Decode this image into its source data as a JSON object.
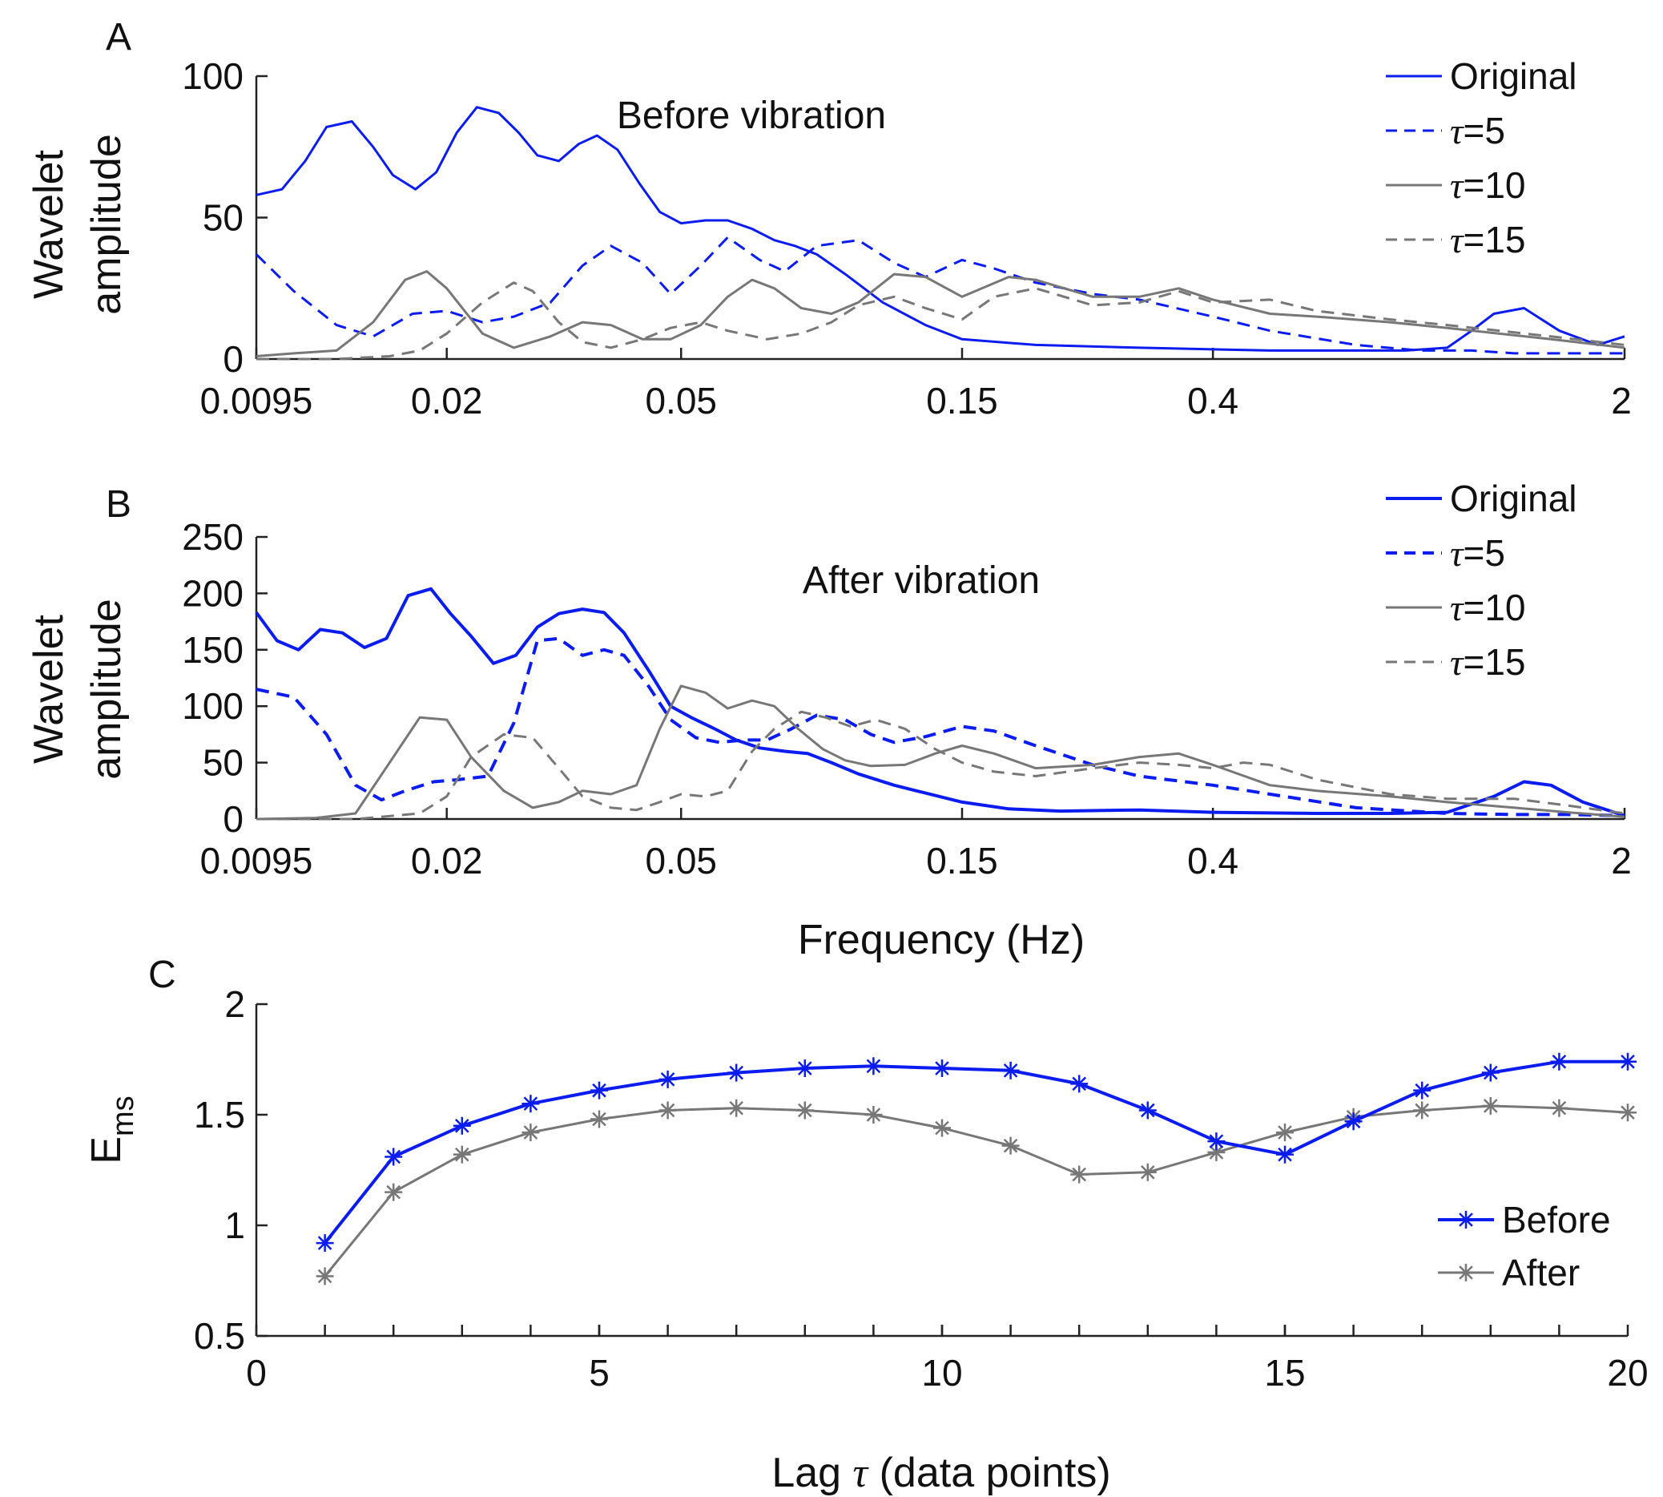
{
  "colors": {
    "blue": "#0a1cf0",
    "gray": "#777777",
    "axis": "#222222"
  },
  "chart_data": [
    {
      "panel": "A",
      "type": "line",
      "title": "",
      "annotation": "Before vibration",
      "xlabel": "",
      "ylabel": [
        "Wavelet",
        "amplitude"
      ],
      "xscale": "log",
      "xlim": [
        0.0095,
        2
      ],
      "ylim": [
        0,
        100
      ],
      "xticks": [
        0.0095,
        0.02,
        0.05,
        0.15,
        0.4,
        2
      ],
      "xtick_labels": [
        "0.0095",
        "0.02",
        "0.05",
        "0.15",
        "0.4",
        "2"
      ],
      "yticks": [
        0,
        50,
        100
      ],
      "ytick_labels": [
        "0",
        "50",
        "100"
      ],
      "legend_position": "top-right",
      "series": [
        {
          "name": "Original",
          "sym": "",
          "num": "",
          "color": "blue",
          "dash": "solid",
          "width": 3,
          "x": [
            0.0095,
            0.0105,
            0.0115,
            0.0125,
            0.0138,
            0.015,
            0.0162,
            0.0177,
            0.0192,
            0.0208,
            0.0225,
            0.0245,
            0.0265,
            0.0285,
            0.031,
            0.0335,
            0.036,
            0.039,
            0.0425,
            0.046,
            0.05,
            0.055,
            0.06,
            0.066,
            0.072,
            0.078,
            0.085,
            0.095,
            0.11,
            0.13,
            0.15,
            0.2,
            0.3,
            0.5,
            0.7,
            0.85,
            1.0,
            1.1,
            1.2,
            1.35,
            1.55,
            1.8,
            2.0
          ],
          "y": [
            58,
            60,
            70,
            82,
            84,
            75,
            65,
            60,
            66,
            80,
            89,
            87,
            80,
            72,
            70,
            76,
            79,
            74,
            62,
            52,
            48,
            49,
            49,
            46,
            42,
            40,
            37,
            30,
            20,
            12,
            7,
            5,
            4,
            3,
            3,
            3,
            4,
            10,
            16,
            18,
            10,
            5,
            8
          ]
        },
        {
          "name": "τ=5",
          "sym": "τ",
          "num": "=5",
          "color": "blue",
          "dash": "16 10",
          "width": 3,
          "x": [
            0.0095,
            0.011,
            0.013,
            0.015,
            0.0175,
            0.02,
            0.023,
            0.026,
            0.03,
            0.034,
            0.038,
            0.043,
            0.048,
            0.054,
            0.06,
            0.068,
            0.075,
            0.085,
            0.1,
            0.115,
            0.13,
            0.15,
            0.17,
            0.2,
            0.25,
            0.3,
            0.4,
            0.5,
            0.7,
            0.9,
            1.1,
            1.3,
            1.6,
            2.0
          ],
          "y": [
            37,
            24,
            12,
            8,
            16,
            17,
            13,
            15,
            20,
            33,
            40,
            34,
            23,
            33,
            43,
            35,
            31,
            40,
            42,
            34,
            29,
            35,
            32,
            27,
            23,
            21,
            15,
            10,
            5,
            3,
            3,
            2,
            2,
            2
          ]
        },
        {
          "name": "τ=10",
          "sym": "τ",
          "num": "=10",
          "color": "gray",
          "dash": "solid",
          "width": 3,
          "x": [
            0.0095,
            0.011,
            0.013,
            0.015,
            0.017,
            0.0185,
            0.02,
            0.023,
            0.026,
            0.03,
            0.034,
            0.038,
            0.043,
            0.048,
            0.054,
            0.06,
            0.066,
            0.072,
            0.08,
            0.09,
            0.1,
            0.115,
            0.13,
            0.15,
            0.18,
            0.2,
            0.25,
            0.3,
            0.35,
            0.4,
            0.5,
            0.6,
            0.8,
            1.0,
            1.5,
            2.0
          ],
          "y": [
            1,
            2,
            3,
            13,
            28,
            31,
            25,
            9,
            4,
            8,
            13,
            12,
            7,
            7,
            12,
            22,
            28,
            25,
            18,
            16,
            20,
            30,
            29,
            22,
            29,
            28,
            22,
            22,
            25,
            21,
            16,
            15,
            13,
            11,
            7,
            4
          ]
        },
        {
          "name": "τ=15",
          "sym": "τ",
          "num": "=15",
          "color": "gray",
          "dash": "16 10",
          "width": 3,
          "x": [
            0.0095,
            0.013,
            0.016,
            0.018,
            0.02,
            0.023,
            0.026,
            0.028,
            0.031,
            0.034,
            0.038,
            0.043,
            0.048,
            0.054,
            0.06,
            0.07,
            0.08,
            0.09,
            0.1,
            0.115,
            0.13,
            0.15,
            0.17,
            0.2,
            0.25,
            0.3,
            0.35,
            0.4,
            0.5,
            0.6,
            0.8,
            1.0,
            1.5,
            2.0
          ],
          "y": [
            0,
            0,
            1,
            3,
            9,
            20,
            27,
            24,
            13,
            6,
            4,
            7,
            11,
            13,
            10,
            7,
            9,
            13,
            19,
            22,
            18,
            14,
            22,
            25,
            19,
            20,
            24,
            20,
            21,
            17,
            14,
            12,
            8,
            5
          ]
        }
      ]
    },
    {
      "panel": "B",
      "type": "line",
      "title": "",
      "annotation": "After vibration",
      "xlabel": "Frequency (Hz)",
      "ylabel": [
        "Wavelet",
        "amplitude"
      ],
      "xscale": "log",
      "xlim": [
        0.0095,
        2
      ],
      "ylim": [
        0,
        250
      ],
      "xticks": [
        0.0095,
        0.02,
        0.05,
        0.15,
        0.4,
        2
      ],
      "xtick_labels": [
        "0.0095",
        "0.02",
        "0.05",
        "0.15",
        "0.4",
        "2"
      ],
      "yticks": [
        0,
        50,
        100,
        150,
        200,
        250
      ],
      "ytick_labels": [
        "0",
        "50",
        "100",
        "150",
        "200",
        "250"
      ],
      "legend_position": "top-right",
      "series": [
        {
          "name": "Original",
          "sym": "",
          "num": "",
          "color": "blue",
          "dash": "solid",
          "width": 4,
          "x": [
            0.0095,
            0.0103,
            0.0112,
            0.0122,
            0.0133,
            0.0145,
            0.0158,
            0.0172,
            0.0188,
            0.0203,
            0.022,
            0.024,
            0.0262,
            0.0285,
            0.031,
            0.034,
            0.037,
            0.04,
            0.044,
            0.048,
            0.052,
            0.057,
            0.062,
            0.068,
            0.075,
            0.082,
            0.09,
            0.1,
            0.115,
            0.13,
            0.15,
            0.18,
            0.22,
            0.3,
            0.4,
            0.6,
            0.8,
            1.0,
            1.2,
            1.35,
            1.5,
            1.7,
            2.0
          ],
          "y": [
            183,
            158,
            150,
            168,
            165,
            152,
            160,
            198,
            204,
            182,
            162,
            138,
            145,
            170,
            182,
            186,
            183,
            165,
            132,
            100,
            90,
            80,
            70,
            63,
            60,
            58,
            50,
            40,
            30,
            23,
            15,
            9,
            7,
            8,
            6,
            5,
            5,
            6,
            20,
            33,
            30,
            15,
            3
          ]
        },
        {
          "name": "τ=5",
          "sym": "τ",
          "num": "=5",
          "color": "blue",
          "dash": "16 10",
          "width": 4,
          "x": [
            0.0095,
            0.011,
            0.0125,
            0.014,
            0.0155,
            0.017,
            0.019,
            0.021,
            0.0235,
            0.026,
            0.0285,
            0.031,
            0.034,
            0.037,
            0.04,
            0.044,
            0.048,
            0.053,
            0.058,
            0.064,
            0.07,
            0.077,
            0.085,
            0.095,
            0.105,
            0.115,
            0.13,
            0.15,
            0.17,
            0.2,
            0.25,
            0.3,
            0.4,
            0.5,
            0.7,
            1.0,
            1.3,
            1.6,
            2.0
          ],
          "y": [
            115,
            108,
            75,
            30,
            17,
            25,
            33,
            35,
            38,
            85,
            158,
            160,
            145,
            150,
            145,
            118,
            88,
            72,
            68,
            70,
            70,
            80,
            92,
            88,
            75,
            68,
            73,
            82,
            78,
            65,
            48,
            38,
            30,
            22,
            10,
            5,
            4,
            4,
            3
          ]
        },
        {
          "name": "τ=10",
          "sym": "τ",
          "num": "=10",
          "color": "gray",
          "dash": "solid",
          "width": 3,
          "x": [
            0.0095,
            0.012,
            0.014,
            0.016,
            0.018,
            0.02,
            0.022,
            0.025,
            0.028,
            0.031,
            0.034,
            0.038,
            0.042,
            0.046,
            0.05,
            0.055,
            0.06,
            0.066,
            0.072,
            0.079,
            0.087,
            0.095,
            0.105,
            0.12,
            0.135,
            0.15,
            0.17,
            0.2,
            0.25,
            0.3,
            0.35,
            0.4,
            0.5,
            0.6,
            0.8,
            1.0,
            1.3,
            1.6,
            2.0
          ],
          "y": [
            0,
            1,
            5,
            50,
            90,
            88,
            55,
            25,
            10,
            15,
            25,
            22,
            30,
            80,
            118,
            112,
            98,
            105,
            100,
            80,
            62,
            52,
            47,
            48,
            58,
            65,
            58,
            45,
            48,
            55,
            58,
            48,
            30,
            25,
            20,
            15,
            10,
            6,
            2
          ]
        },
        {
          "name": "τ=15",
          "sym": "τ",
          "num": "=15",
          "color": "gray",
          "dash": "16 10",
          "width": 3,
          "x": [
            0.0095,
            0.014,
            0.018,
            0.02,
            0.022,
            0.025,
            0.028,
            0.031,
            0.034,
            0.038,
            0.042,
            0.046,
            0.05,
            0.055,
            0.06,
            0.066,
            0.072,
            0.08,
            0.088,
            0.097,
            0.107,
            0.12,
            0.135,
            0.15,
            0.17,
            0.2,
            0.25,
            0.3,
            0.35,
            0.4,
            0.45,
            0.5,
            0.6,
            0.8,
            1.0,
            1.3,
            1.6,
            2.0
          ],
          "y": [
            0,
            0,
            5,
            20,
            55,
            75,
            72,
            45,
            20,
            10,
            8,
            15,
            22,
            20,
            25,
            60,
            80,
            95,
            90,
            82,
            88,
            80,
            62,
            50,
            42,
            38,
            45,
            50,
            48,
            45,
            50,
            48,
            35,
            22,
            18,
            18,
            12,
            5
          ]
        }
      ]
    },
    {
      "panel": "C",
      "type": "line",
      "title": "",
      "xlabel": "Lag τ (data points)",
      "xlabel_pre": "Lag ",
      "xlabel_sym": "τ",
      "xlabel_post": " (data points)",
      "ylabel": "Ems",
      "ylabel_main": "E",
      "ylabel_sub": "ms",
      "xlim": [
        0,
        20
      ],
      "ylim": [
        0.5,
        2
      ],
      "xticks": [
        0,
        5,
        10,
        15,
        20
      ],
      "xtick_labels": [
        "0",
        "5",
        "10",
        "15",
        "20"
      ],
      "yticks": [
        0.5,
        1,
        1.5,
        2
      ],
      "ytick_labels": [
        "0.5",
        "1",
        "1.5",
        "2"
      ],
      "legend_position": "bottom-right",
      "series": [
        {
          "name": "Before",
          "color": "blue",
          "width": 4,
          "x": [
            1,
            2,
            3,
            4,
            5,
            6,
            7,
            8,
            9,
            10,
            11,
            12,
            13,
            14,
            15,
            16,
            17,
            18,
            19,
            20
          ],
          "y": [
            0.92,
            1.31,
            1.45,
            1.55,
            1.61,
            1.66,
            1.69,
            1.71,
            1.72,
            1.71,
            1.7,
            1.64,
            1.52,
            1.38,
            1.32,
            1.47,
            1.61,
            1.69,
            1.74,
            1.74
          ]
        },
        {
          "name": "After",
          "color": "gray",
          "width": 3,
          "x": [
            1,
            2,
            3,
            4,
            5,
            6,
            7,
            8,
            9,
            10,
            11,
            12,
            13,
            14,
            15,
            16,
            17,
            18,
            19,
            20
          ],
          "y": [
            0.77,
            1.15,
            1.32,
            1.42,
            1.48,
            1.52,
            1.53,
            1.52,
            1.5,
            1.44,
            1.36,
            1.23,
            1.24,
            1.33,
            1.42,
            1.49,
            1.52,
            1.54,
            1.53,
            1.51
          ]
        }
      ]
    }
  ]
}
